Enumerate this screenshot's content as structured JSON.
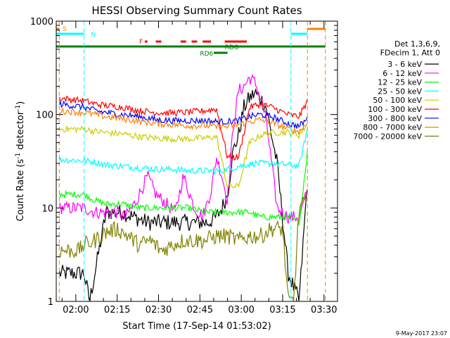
{
  "chart_data": {
    "type": "line",
    "title": "HESSI Observing Summary Count Rates",
    "xlabel": "Start Time (17-Sep-14 01:53:02)",
    "ylabel": "Count Rate (s⁻¹ detector⁻¹)",
    "ylabel_parts": [
      "Count Rate (s",
      "-1",
      " detector",
      "-1",
      ")"
    ],
    "y_scale": "log",
    "ylim": [
      1,
      1000
    ],
    "y_ticks": [
      1,
      10,
      100,
      1000
    ],
    "y_tick_labels": [
      "1",
      "10",
      "100",
      "1000"
    ],
    "x_range_min": [
      -0.1,
      101.9
    ],
    "x_ticks_min": [
      7,
      22,
      37,
      52,
      67,
      82,
      97
    ],
    "x_tick_labels": [
      "02:00",
      "02:15",
      "02:30",
      "02:45",
      "03:00",
      "03:15",
      "03:30"
    ],
    "legend_header": [
      "Det 1,3,6,9,",
      "FDecim 1, Att 0"
    ],
    "legend_placement": "right",
    "footer_date": "9-May-2017 23:07",
    "series": [
      {
        "name": "3 - 6 keV",
        "color": "#000000",
        "x": [
          1,
          10,
          12,
          18,
          24,
          28,
          33,
          37,
          40,
          44,
          48,
          51,
          55,
          58,
          60,
          62,
          64,
          66,
          68,
          70,
          72,
          74,
          76,
          80,
          84,
          88,
          91
        ],
        "y": [
          2,
          2,
          1,
          9,
          9,
          8,
          7,
          7,
          7,
          7,
          7,
          7,
          7,
          8,
          10,
          14,
          40,
          60,
          120,
          150,
          170,
          150,
          120,
          30,
          2,
          1,
          20
        ]
      },
      {
        "name": "6 - 12 keV",
        "color": "#ff00ff",
        "x": [
          1,
          10,
          14,
          18,
          22,
          25,
          29,
          33,
          36,
          40,
          43,
          46,
          50,
          53,
          56,
          58,
          60,
          62,
          64,
          66,
          68,
          70,
          72,
          74,
          76,
          80,
          84,
          88,
          91
        ],
        "y": [
          10,
          10,
          9,
          9,
          9,
          8,
          12,
          22,
          14,
          11,
          9,
          22,
          10,
          8,
          15,
          35,
          22,
          12,
          70,
          180,
          200,
          250,
          220,
          150,
          90,
          10,
          8,
          8,
          15
        ]
      },
      {
        "name": "12 - 25 keV",
        "color": "#00ff00",
        "x": [
          1,
          10,
          14,
          18,
          24,
          30,
          36,
          42,
          48,
          54,
          60,
          62,
          66,
          70,
          74,
          78,
          84,
          88,
          91
        ],
        "y": [
          14,
          14,
          12,
          11,
          11,
          10,
          10,
          10,
          10,
          9,
          9,
          9,
          9,
          9,
          8,
          8,
          8,
          7,
          40
        ]
      },
      {
        "name": "25 - 50 keV",
        "color": "#00ffff",
        "x": [
          1,
          10,
          14,
          18,
          24,
          30,
          36,
          42,
          48,
          54,
          60,
          66,
          72,
          78,
          84,
          88,
          91
        ],
        "y": [
          33,
          32,
          31,
          29,
          28,
          27,
          26,
          26,
          25,
          25,
          25,
          28,
          30,
          30,
          29,
          28,
          70
        ]
      },
      {
        "name": "50 - 100 keV",
        "color": "#cccc00",
        "x": [
          1,
          10,
          14,
          18,
          24,
          30,
          36,
          42,
          48,
          54,
          58,
          62,
          66,
          70,
          74,
          78,
          84,
          88,
          91
        ],
        "y": [
          70,
          70,
          66,
          64,
          62,
          58,
          56,
          55,
          55,
          56,
          58,
          17,
          17,
          50,
          60,
          64,
          65,
          60,
          80
        ]
      },
      {
        "name": "100 - 300 keV",
        "color": "#ff0000",
        "x": [
          1,
          10,
          14,
          18,
          24,
          30,
          36,
          42,
          48,
          54,
          58,
          62,
          66,
          70,
          74,
          78,
          84,
          88,
          91
        ],
        "y": [
          150,
          140,
          130,
          125,
          120,
          110,
          105,
          104,
          106,
          110,
          115,
          35,
          35,
          120,
          130,
          120,
          100,
          95,
          140
        ]
      },
      {
        "name": "300 - 800 keV",
        "color": "#0000ff",
        "x": [
          1,
          10,
          14,
          18,
          24,
          30,
          36,
          42,
          48,
          54,
          58,
          62,
          66,
          70,
          74,
          78,
          84,
          88,
          91
        ],
        "y": [
          130,
          120,
          110,
          105,
          100,
          95,
          88,
          86,
          86,
          86,
          84,
          84,
          86,
          95,
          100,
          95,
          80,
          75,
          90
        ]
      },
      {
        "name": "800 - 7000 keV",
        "color": "#ff8000",
        "x": [
          1,
          10,
          14,
          18,
          24,
          30,
          36,
          42,
          48,
          54,
          58,
          62,
          66,
          70,
          74,
          78,
          84,
          88,
          91
        ],
        "y": [
          110,
          105,
          100,
          95,
          90,
          85,
          80,
          78,
          76,
          76,
          74,
          74,
          78,
          84,
          88,
          82,
          70,
          66,
          80
        ]
      },
      {
        "name": "7000 - 20000 keV",
        "color": "#808000",
        "x": [
          1,
          8,
          10,
          14,
          18,
          22,
          26,
          30,
          34,
          38,
          42,
          46,
          50,
          54,
          58,
          62,
          66,
          70,
          74,
          78,
          82,
          84,
          86,
          88,
          91
        ],
        "y": [
          3.5,
          3.5,
          4,
          4.5,
          5.5,
          6,
          5,
          4,
          4.5,
          3.5,
          4,
          4.5,
          4.5,
          4.5,
          5,
          5,
          4.5,
          5,
          5,
          6,
          6,
          1,
          1,
          10,
          12
        ]
      }
    ],
    "annotations": {
      "state_letters": [
        "S",
        "N",
        "F",
        "RDO",
        "RD6"
      ],
      "state_colors": {
        "saa": "#ff8000",
        "night": "#00ffff",
        "flare": "#ff0000",
        "attenuator": "#008000"
      },
      "saa_intervals_min": [
        [
          -0.1,
          1
        ],
        [
          85,
          91
        ],
        [
          91,
          97.5
        ]
      ],
      "night_intervals_min": [
        [
          -0.1,
          10
        ],
        [
          85,
          91
        ]
      ],
      "flare_segments_min": [
        [
          32,
          33
        ],
        [
          36,
          38
        ],
        [
          45,
          47
        ],
        [
          49,
          51
        ],
        [
          53,
          56
        ],
        [
          61,
          69
        ]
      ],
      "attenuator_bar_min": [
        -0.1,
        97.5
      ],
      "rd6_bar_min": [
        57,
        62
      ]
    }
  }
}
